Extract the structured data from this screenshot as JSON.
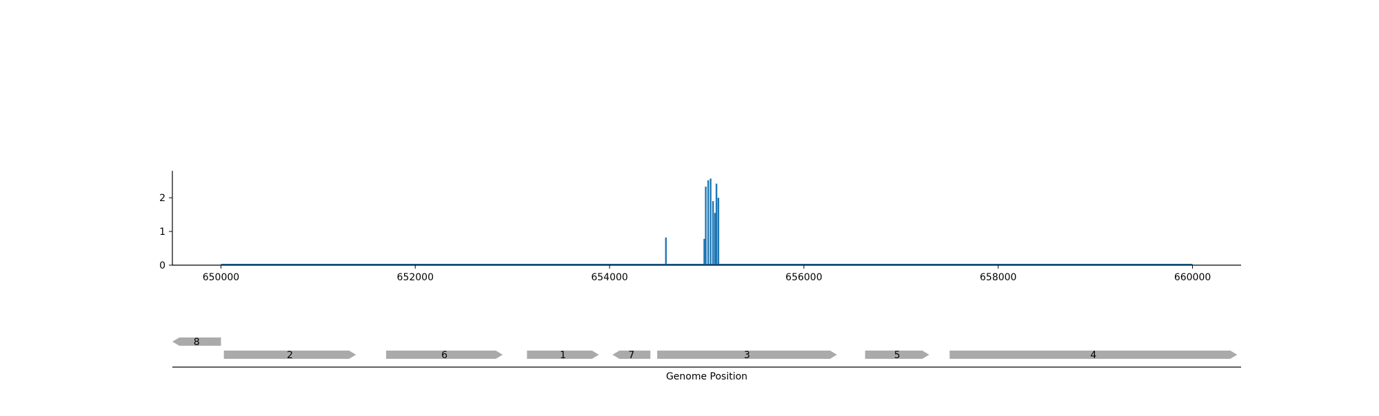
{
  "chart_data": [
    {
      "type": "bar",
      "title": "",
      "xlabel": "",
      "ylabel": "",
      "xlim": [
        649500,
        660500
      ],
      "ylim": [
        0,
        2.8
      ],
      "xticks": [
        "650000",
        "652000",
        "654000",
        "656000",
        "658000",
        "660000"
      ],
      "yticks": [
        "0",
        "1",
        "2"
      ],
      "baseline": {
        "x_start": 650000,
        "x_end": 660000,
        "color": "#1f77b4"
      },
      "series": [
        {
          "color": "#1f77b4",
          "points": [
            {
              "x": 654580,
              "y": 0.82
            },
            {
              "x": 654975,
              "y": 0.78
            },
            {
              "x": 654990,
              "y": 2.33
            },
            {
              "x": 655015,
              "y": 2.52
            },
            {
              "x": 655040,
              "y": 2.57
            },
            {
              "x": 655065,
              "y": 1.9
            },
            {
              "x": 655085,
              "y": 1.55
            },
            {
              "x": 655100,
              "y": 2.42
            },
            {
              "x": 655120,
              "y": 2.0
            }
          ]
        }
      ],
      "grid": false
    },
    {
      "type": "gene-track",
      "xlabel": "Genome Position",
      "color": "#aaaaaa",
      "genes": [
        {
          "label": "8",
          "start": 649500,
          "end": 650000,
          "strand": "-",
          "row": 0
        },
        {
          "label": "2",
          "start": 650030,
          "end": 651390,
          "strand": "+",
          "row": 1
        },
        {
          "label": "6",
          "start": 651700,
          "end": 652900,
          "strand": "+",
          "row": 1
        },
        {
          "label": "1",
          "start": 653150,
          "end": 653890,
          "strand": "+",
          "row": 1
        },
        {
          "label": "7",
          "start": 654030,
          "end": 654420,
          "strand": "-",
          "row": 1
        },
        {
          "label": "3",
          "start": 654490,
          "end": 656340,
          "strand": "+",
          "row": 1
        },
        {
          "label": "5",
          "start": 656630,
          "end": 657290,
          "strand": "+",
          "row": 1
        },
        {
          "label": "4",
          "start": 657500,
          "end": 660460,
          "strand": "+",
          "row": 1
        }
      ]
    }
  ]
}
